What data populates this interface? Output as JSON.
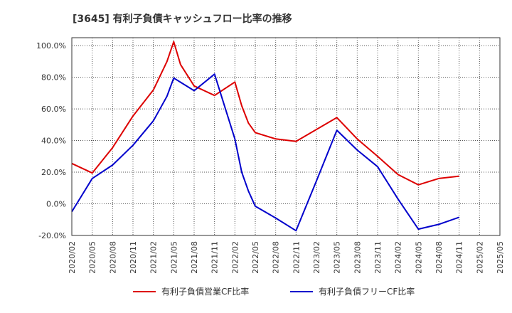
{
  "chart_data": {
    "type": "line",
    "title": "[3645]  有利子負債キャッシュフロー比率の推移",
    "x_ticks": [
      "2020/02",
      "2020/05",
      "2020/08",
      "2020/11",
      "2021/02",
      "2021/05",
      "2021/08",
      "2021/11",
      "2022/02",
      "2022/05",
      "2022/08",
      "2022/11",
      "2023/02",
      "2023/05",
      "2023/08",
      "2023/11",
      "2024/02",
      "2024/05",
      "2024/08",
      "2024/11",
      "2025/02",
      "2025/05"
    ],
    "y_ticks": [
      "100.0%",
      "80.0%",
      "60.0%",
      "40.0%",
      "20.0%",
      "0.0%",
      "-20.0%"
    ],
    "ylim": [
      -20,
      105
    ],
    "grid": true,
    "legend_position": "bottom",
    "series": [
      {
        "name": "有利子負債営業CF比率",
        "color": "#dd0000",
        "points": [
          [
            "2020/02",
            25.5
          ],
          [
            "2020/05",
            19.5
          ],
          [
            "2020/08",
            35.5
          ],
          [
            "2020/11",
            55.5
          ],
          [
            "2021/02",
            72.0
          ],
          [
            "2021/04",
            90.0
          ],
          [
            "2021/05",
            102.5
          ],
          [
            "2021/06",
            88.0
          ],
          [
            "2021/08",
            74.5
          ],
          [
            "2021/11",
            68.5
          ],
          [
            "2022/02",
            77.0
          ],
          [
            "2022/03",
            62.0
          ],
          [
            "2022/04",
            51.0
          ],
          [
            "2022/05",
            45.0
          ],
          [
            "2022/08",
            41.0
          ],
          [
            "2022/11",
            39.5
          ],
          [
            "2023/02",
            47.0
          ],
          [
            "2023/05",
            54.5
          ],
          [
            "2023/08",
            41.0
          ],
          [
            "2023/11",
            30.0
          ],
          [
            "2024/02",
            18.5
          ],
          [
            "2024/05",
            12.0
          ],
          [
            "2024/08",
            16.0
          ],
          [
            "2024/11",
            17.5
          ]
        ]
      },
      {
        "name": "有利子負債フリーCF比率",
        "color": "#0000cc",
        "points": [
          [
            "2020/02",
            -5.0
          ],
          [
            "2020/05",
            16.0
          ],
          [
            "2020/08",
            24.5
          ],
          [
            "2020/11",
            37.0
          ],
          [
            "2021/02",
            52.5
          ],
          [
            "2021/04",
            68.0
          ],
          [
            "2021/05",
            79.5
          ],
          [
            "2021/08",
            71.5
          ],
          [
            "2021/11",
            82.0
          ],
          [
            "2022/02",
            41.0
          ],
          [
            "2022/03",
            20.0
          ],
          [
            "2022/04",
            8.0
          ],
          [
            "2022/05",
            -1.5
          ],
          [
            "2022/08",
            -9.0
          ],
          [
            "2022/11",
            -17.0
          ],
          [
            "2023/02",
            14.5
          ],
          [
            "2023/05",
            46.5
          ],
          [
            "2023/08",
            34.0
          ],
          [
            "2023/11",
            23.5
          ],
          [
            "2024/02",
            3.0
          ],
          [
            "2024/05",
            -16.0
          ],
          [
            "2024/08",
            -13.0
          ],
          [
            "2024/11",
            -8.5
          ]
        ]
      }
    ]
  }
}
